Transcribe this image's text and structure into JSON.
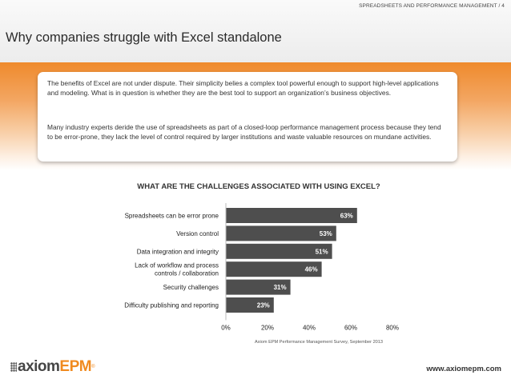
{
  "header": {
    "breadcrumb": "SPREADSHEETS AND PERFORMANCE MANAGEMENT / 4",
    "title": "Why companies struggle with Excel standalone"
  },
  "intro": {
    "paragraph1": "The benefits of Excel are not under dispute. Their simplicity belies a complex tool powerful enough to support high-level applications and modeling. What is in question is whether they are the best tool to support an organization’s business objectives.",
    "paragraph2": "Many industry experts deride the use of spreadsheets as part of a closed-loop performance management process because they tend to be error-prone, they lack the level of control required by larger institutions and waste valuable resources on mundane activities."
  },
  "colors": {
    "bar": "#4e4e4e",
    "accent": "#f08a1f"
  },
  "chart_data": {
    "type": "bar",
    "orientation": "horizontal",
    "title": "WHAT ARE THE CHALLENGES ASSOCIATED WITH USING EXCEL?",
    "categories": [
      [
        "Spreadsheets can be error prone"
      ],
      [
        "Version control"
      ],
      [
        "Data integration and integrity"
      ],
      [
        "Lack of workflow and process",
        "controls / collaboration"
      ],
      [
        "Security challenges"
      ],
      [
        "Difficulty publishing and reporting"
      ]
    ],
    "values": [
      63,
      53,
      51,
      46,
      31,
      23
    ],
    "value_labels": [
      "63%",
      "53%",
      "51%",
      "46%",
      "31%",
      "23%"
    ],
    "xlim": [
      0,
      80
    ],
    "xticks": [
      0,
      20,
      40,
      60,
      80
    ],
    "xtick_labels": [
      "0%",
      "20%",
      "40%",
      "60%",
      "80%"
    ],
    "xlabel": "",
    "ylabel": "",
    "grid": false
  },
  "source": "Axiom EPM Performance Management Survey, September 2013",
  "footer": {
    "logo_word": "axiom",
    "logo_epm": "EPM",
    "logo_mark": "®",
    "url": "www.axiomepm.com"
  }
}
